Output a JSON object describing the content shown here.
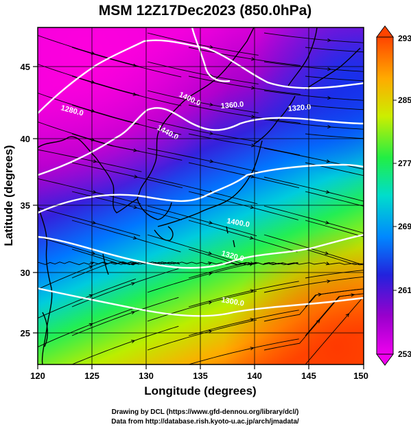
{
  "map": {
    "title": "MSM 12Z17Dec2023 (850.0hPa)",
    "xlabel": "Longitude (degrees)",
    "ylabel": "Latitude  (degrees)",
    "lon_ticks": [
      "120",
      "125",
      "130",
      "135",
      "140",
      "145",
      "150"
    ],
    "lat_ticks": [
      "25",
      "30",
      "35",
      "40",
      "45"
    ],
    "lon_range": [
      120,
      150
    ],
    "lat_range": [
      22.4,
      47.6
    ],
    "contour_labels": [
      "1280.0",
      "1400.0",
      "1440.0",
      "1360.0",
      "1320.0",
      "1400.0",
      "1320.0",
      "1300.0"
    ],
    "colorbar": {
      "ticks": [
        "293",
        "285",
        "277",
        "269",
        "261",
        "253"
      ],
      "range": [
        253,
        293
      ],
      "palette": [
        "#e0f",
        "#90c",
        "#22d",
        "#08f",
        "#0dc",
        "#2e4",
        "#ce0",
        "#fa0",
        "#f40"
      ]
    },
    "credits": {
      "line1": "Drawing by DCL (https://www.gfd-dennou.org/library/dcl/)",
      "line2": "Data from http://database.rish.kyoto-u.ac.jp/arch/jmadata/"
    }
  }
}
